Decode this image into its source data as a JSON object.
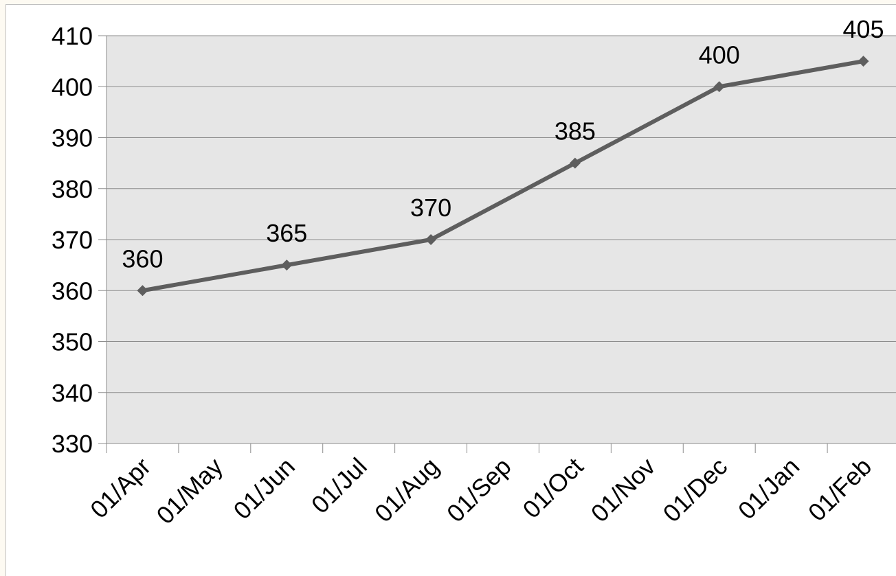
{
  "chart_data": {
    "type": "line",
    "title": "",
    "xlabel": "",
    "ylabel": "",
    "categories": [
      "01/Apr",
      "01/May",
      "01/Jun",
      "01/Jul",
      "01/Aug",
      "01/Sep",
      "01/Oct",
      "01/Nov",
      "01/Dec",
      "01/Jan",
      "01/Feb"
    ],
    "points": [
      {
        "x": "01/Apr",
        "y": 360
      },
      {
        "x": "01/Jun",
        "y": 365
      },
      {
        "x": "01/Aug",
        "y": 370
      },
      {
        "x": "01/Oct",
        "y": 385
      },
      {
        "x": "01/Dec",
        "y": 400
      },
      {
        "x": "01/Feb",
        "y": 405
      }
    ],
    "ylim": [
      330,
      410
    ],
    "yticks": [
      330,
      340,
      350,
      360,
      370,
      380,
      390,
      400,
      410
    ],
    "grid": true,
    "legend": "none",
    "colors": {
      "line": "#5e5e5e",
      "plot_background": "#e6e6e6",
      "gridline": "#8c8c8c"
    }
  }
}
